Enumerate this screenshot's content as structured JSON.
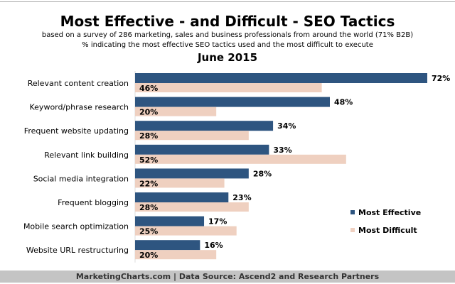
{
  "chart_data": {
    "type": "bar",
    "orientation": "horizontal",
    "title": "Most Effective - and Difficult - SEO Tactics",
    "subtitle": [
      "based on a survey of 286 marketing, sales and business professionals from around the world (71% B2B)",
      "% indicating the most effective SEO tactics used and the most difficult to execute"
    ],
    "date": "June 2015",
    "categories": [
      "Relevant content creation",
      "Keyword/phrase research",
      "Frequent website updating",
      "Relevant link building",
      "Social media integration",
      "Frequent blogging",
      "Mobile search optimization",
      "Website URL restructuring"
    ],
    "series": [
      {
        "name": "Most Effective",
        "color": "#2e5580",
        "values": [
          72,
          48,
          34,
          33,
          28,
          23,
          17,
          16
        ]
      },
      {
        "name": "Most Difficult",
        "color": "#efd0c0",
        "values": [
          46,
          20,
          28,
          52,
          22,
          28,
          25,
          20
        ]
      }
    ],
    "value_suffix": "%",
    "legend": "right",
    "grid": false
  },
  "footer": "MarketingCharts.com | Data Source: Ascend2 and Research Partners"
}
